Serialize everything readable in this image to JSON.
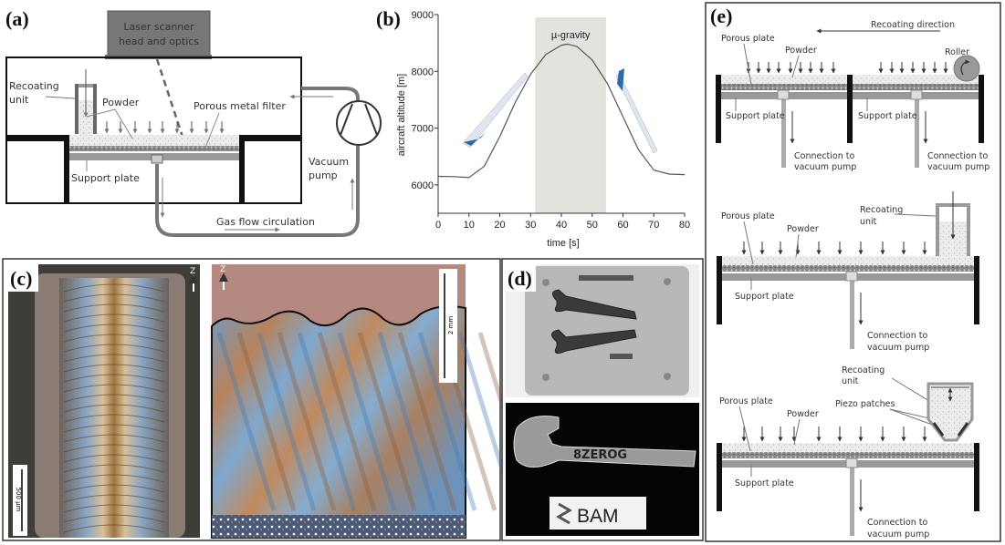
{
  "panels": {
    "a": {
      "label": "(a)",
      "laser_line1": "Laser scanner",
      "laser_line2": "head and optics",
      "recoating_line1": "Recoating",
      "recoating_line2": "unit",
      "powder": "Powder",
      "porous_filter": "Porous metal filter",
      "support_plate": "Support plate",
      "vacuum_line1": "Vacuum",
      "vacuum_line2": "pump",
      "gas_flow": "Gas flow circulation"
    },
    "b": {
      "label": "(b)"
    },
    "c": {
      "label": "(c)",
      "axis_left": "Z",
      "axis_right": "Z",
      "scale_left": "500 µm",
      "scale_right": "2 mm"
    },
    "d": {
      "label": "(d)",
      "bam_text": "BAM",
      "wrench_text": "8ZEROG"
    },
    "e": {
      "label": "(e)",
      "recoating_direction": "Recoating direction",
      "porous_plate": "Porous plate",
      "powder": "Powder",
      "roller": "Roller",
      "support_plate": "Support plate",
      "connection_line1": "Connection to",
      "connection_line2": "vacuum pump",
      "recoating_line1": "Recoating",
      "recoating_line2": "unit",
      "piezo_patches": "Piezo patches"
    }
  },
  "chart_data": {
    "type": "line",
    "xlabel": "time [s]",
    "ylabel": "aircraft altitude [m]",
    "xlim": [
      0,
      80
    ],
    "ylim": [
      5500,
      9000
    ],
    "xticks": [
      "0",
      "10",
      "20",
      "30",
      "40",
      "50",
      "60",
      "70",
      "80"
    ],
    "yticks": [
      "6000",
      "7000",
      "8000",
      "9000"
    ],
    "x": [
      0,
      5,
      10,
      15,
      20,
      25,
      30,
      35,
      40,
      42,
      45,
      50,
      55,
      60,
      65,
      70,
      75,
      80
    ],
    "y": [
      6150,
      6145,
      6130,
      6330,
      6850,
      7450,
      7950,
      8300,
      8460,
      8480,
      8440,
      8200,
      7780,
      7200,
      6620,
      6260,
      6190,
      6180
    ],
    "shaded_region": {
      "label": "µ-gravity",
      "x": [
        31.5,
        54.5
      ],
      "color": "#e2e2de"
    },
    "line_color": "#555555",
    "grid": false
  }
}
